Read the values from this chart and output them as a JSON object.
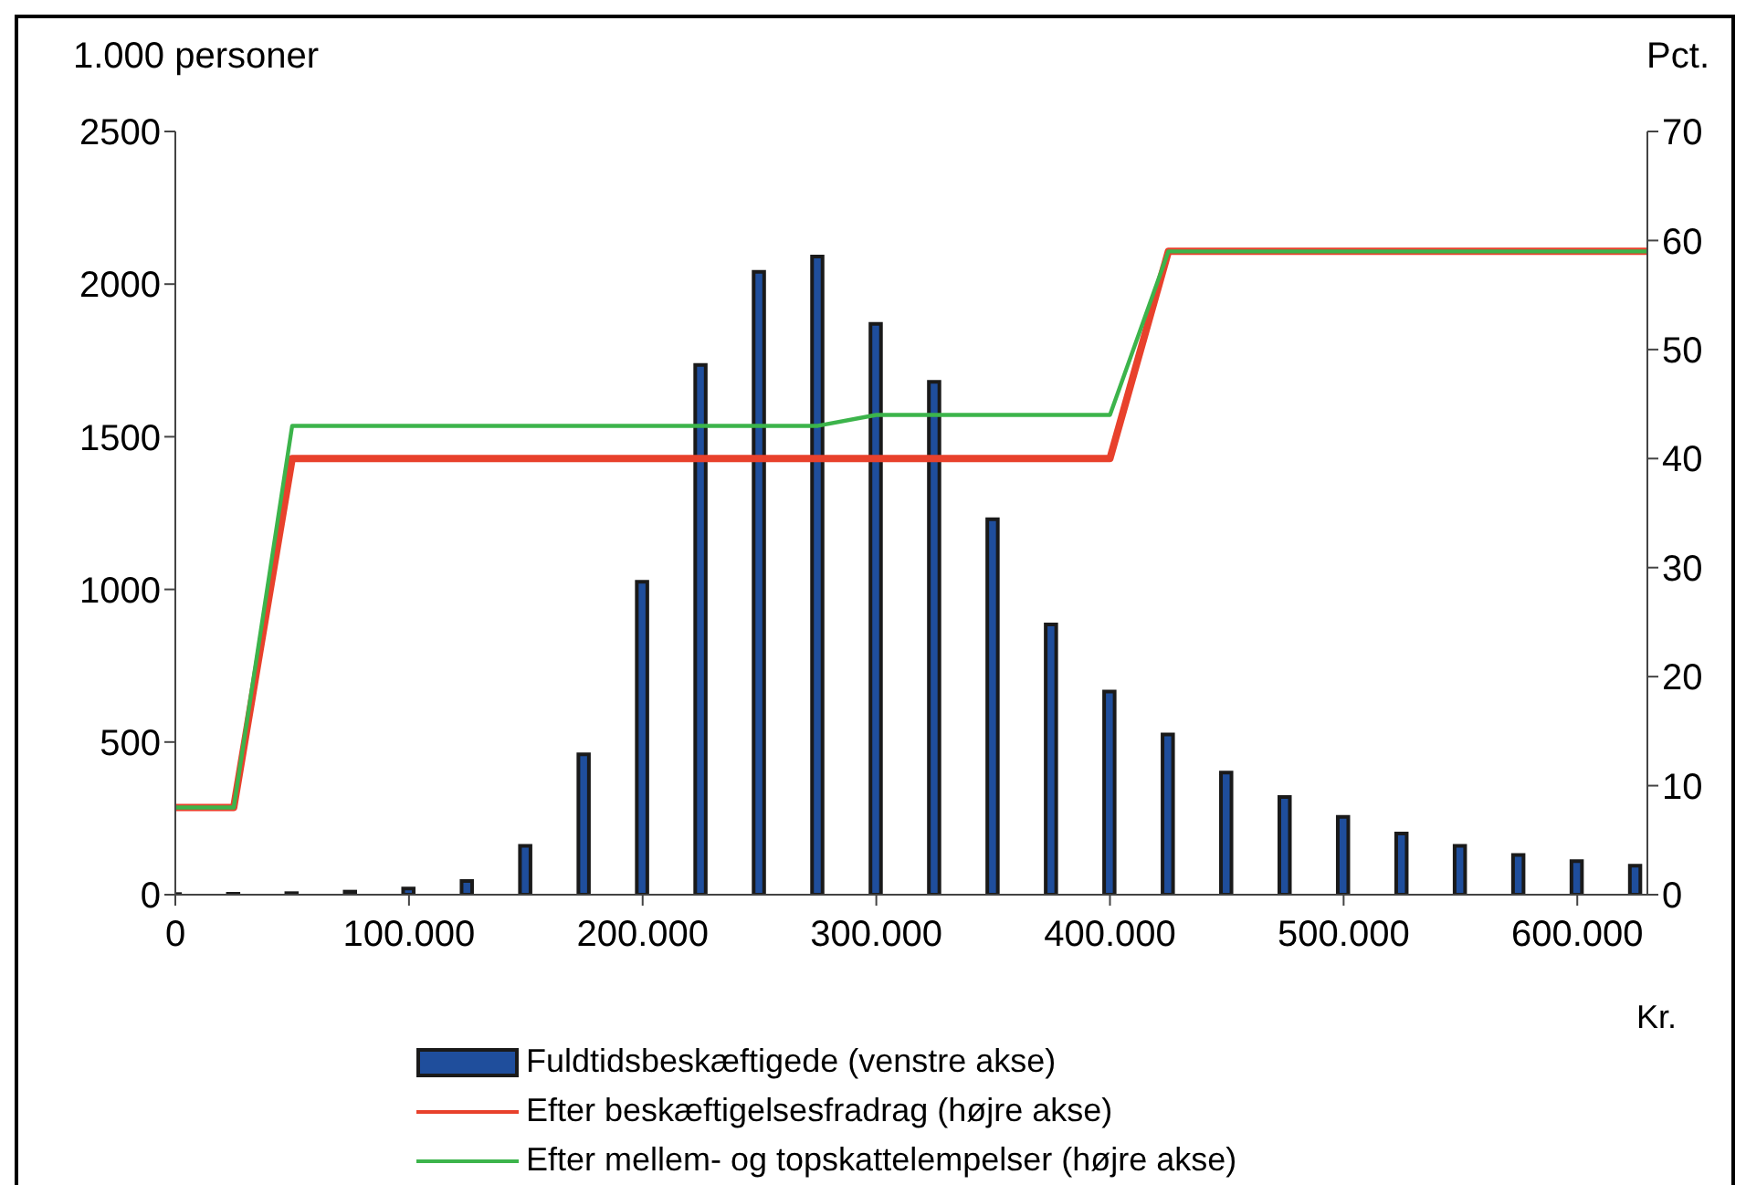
{
  "chart_data": {
    "type": "bar",
    "ylabel": "1.000 personer",
    "y2label": "Pct.",
    "xlabel": "Kr.",
    "x": [
      0,
      25000,
      50000,
      75000,
      100000,
      125000,
      150000,
      175000,
      200000,
      225000,
      250000,
      275000,
      300000,
      325000,
      350000,
      375000,
      400000,
      425000,
      450000,
      475000,
      500000,
      525000,
      550000,
      575000,
      600000,
      625000
    ],
    "series": [
      {
        "name": "Fuldtidsbeskæftigede (venstre akse)",
        "color": "#1f4e9c",
        "values": [
          2,
          3,
          5,
          10,
          20,
          45,
          160,
          460,
          1025,
          1735,
          2040,
          2090,
          1870,
          1680,
          1230,
          885,
          665,
          525,
          400,
          320,
          255,
          200,
          160,
          130,
          110,
          95
        ]
      },
      {
        "type": "line",
        "name": "Efter beskæftigelsesfradrag (højre akse)",
        "color": "#e8412c",
        "axis": "y2",
        "x": [
          0,
          25000,
          50000,
          400000,
          425000,
          630000
        ],
        "values": [
          8,
          8,
          40,
          40,
          59,
          59
        ]
      },
      {
        "type": "line",
        "name": "Efter mellem- og topskattelempelser (højre akse)",
        "color": "#3cb44b",
        "axis": "y2",
        "x": [
          0,
          25000,
          50000,
          275000,
          300000,
          400000,
          425000,
          630000
        ],
        "values": [
          8,
          8,
          43,
          43,
          44,
          44,
          59,
          59
        ]
      }
    ],
    "xlim": [
      0,
      630000
    ],
    "xticks": [
      0,
      {
        "value": 100000,
        "label": "100.000"
      },
      {
        "value": 200000,
        "label": "200.000"
      },
      {
        "value": 300000,
        "label": "300.000"
      },
      {
        "value": 400000,
        "label": "400.000"
      },
      {
        "value": 500000,
        "label": "500.000"
      },
      {
        "value": 600000,
        "label": "600.000"
      }
    ],
    "ylim": [
      0,
      2500
    ],
    "yticks": [
      0,
      500,
      1000,
      1500,
      2000,
      2500
    ],
    "y2lim": [
      0,
      70
    ],
    "y2ticks": [
      0,
      10,
      20,
      30,
      40,
      50,
      60,
      70
    ],
    "legend": "bottom",
    "line_style": "solid",
    "marker": "none"
  }
}
